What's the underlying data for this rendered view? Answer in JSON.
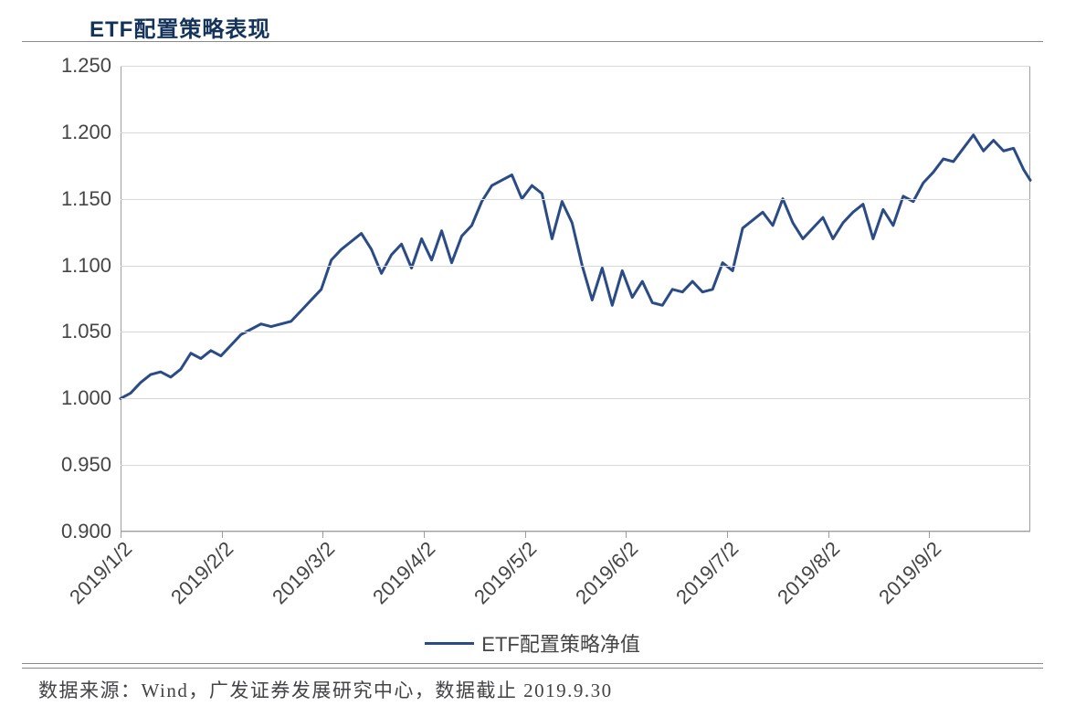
{
  "chart": {
    "type": "line",
    "title": "ETF配置策略表现",
    "title_fontsize": 24,
    "title_color": "#14335a",
    "footer": "数据来源：Wind，广发证券发展研究中心，数据截止 2019.9.30",
    "footer_fontsize": 21,
    "footer_color": "#434347",
    "background_color": "#ffffff",
    "plot_border_color": "#9e9e9e",
    "grid_color": "#d9d9d9",
    "axis_label_color": "#454545",
    "axis_label_fontsize": 22,
    "ylim": [
      0.9,
      1.25
    ],
    "ytick_step": 0.05,
    "yticks": [
      "0.900",
      "0.950",
      "1.000",
      "1.050",
      "1.100",
      "1.150",
      "1.200",
      "1.250"
    ],
    "xticks": [
      "2019/1/2",
      "2019/2/2",
      "2019/3/2",
      "2019/4/2",
      "2019/5/2",
      "2019/6/2",
      "2019/7/2",
      "2019/8/2",
      "2019/9/2"
    ],
    "xtick_rotation_deg": 45,
    "x_domain": [
      1,
      273
    ],
    "legend": {
      "label": "ETF配置策略净值",
      "color": "#2a4b86",
      "line_width": 3
    },
    "series": [
      {
        "name": "ETF配置策略净值",
        "color": "#2a4b86",
        "line_width": 3,
        "x": [
          1,
          4,
          7,
          10,
          13,
          16,
          19,
          22,
          25,
          28,
          31,
          34,
          37,
          40,
          43,
          46,
          49,
          52,
          55,
          58,
          61,
          64,
          67,
          70,
          73,
          76,
          79,
          82,
          85,
          88,
          91,
          94,
          97,
          100,
          103,
          106,
          109,
          112,
          115,
          118,
          121,
          124,
          127,
          130,
          133,
          136,
          139,
          142,
          145,
          148,
          151,
          154,
          157,
          160,
          163,
          166,
          169,
          172,
          175,
          178,
          181,
          184,
          187,
          190,
          193,
          196,
          199,
          202,
          205,
          208,
          211,
          214,
          217,
          220,
          223,
          226,
          229,
          232,
          235,
          238,
          241,
          244,
          247,
          250,
          253,
          256,
          259,
          262,
          265,
          268,
          271,
          273
        ],
        "y": [
          1.0,
          1.004,
          1.012,
          1.018,
          1.02,
          1.016,
          1.022,
          1.034,
          1.03,
          1.036,
          1.032,
          1.04,
          1.048,
          1.052,
          1.056,
          1.054,
          1.056,
          1.058,
          1.066,
          1.074,
          1.082,
          1.104,
          1.112,
          1.118,
          1.124,
          1.112,
          1.094,
          1.108,
          1.116,
          1.098,
          1.12,
          1.104,
          1.126,
          1.102,
          1.122,
          1.13,
          1.148,
          1.16,
          1.164,
          1.168,
          1.15,
          1.16,
          1.154,
          1.12,
          1.148,
          1.132,
          1.1,
          1.074,
          1.098,
          1.07,
          1.096,
          1.076,
          1.088,
          1.072,
          1.07,
          1.082,
          1.08,
          1.088,
          1.08,
          1.082,
          1.102,
          1.096,
          1.128,
          1.134,
          1.14,
          1.13,
          1.15,
          1.132,
          1.12,
          1.128,
          1.136,
          1.12,
          1.132,
          1.14,
          1.146,
          1.12,
          1.142,
          1.13,
          1.152,
          1.148,
          1.162,
          1.17,
          1.18,
          1.178,
          1.188,
          1.198,
          1.186,
          1.194,
          1.186,
          1.188,
          1.172,
          1.164
        ]
      }
    ]
  }
}
